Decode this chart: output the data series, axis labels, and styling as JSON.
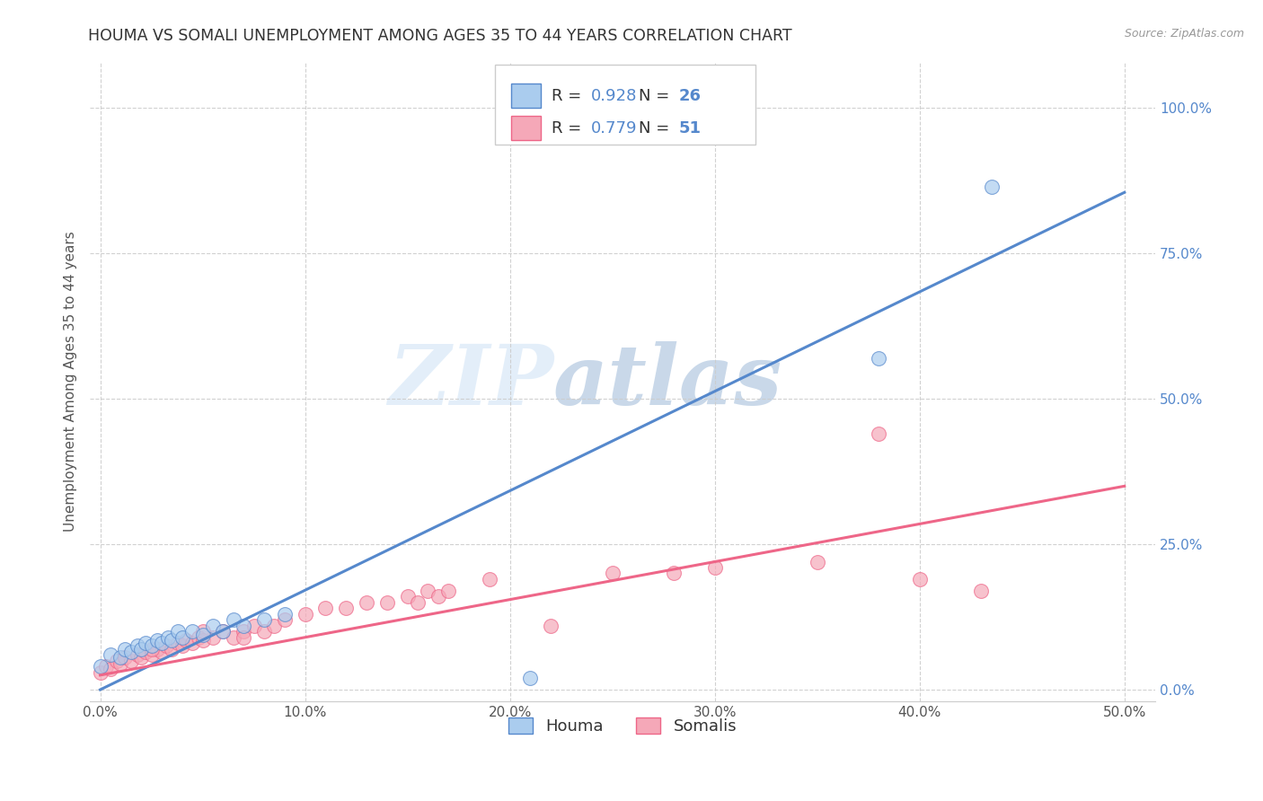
{
  "title": "HOUMA VS SOMALI UNEMPLOYMENT AMONG AGES 35 TO 44 YEARS CORRELATION CHART",
  "source": "Source: ZipAtlas.com",
  "xlabel_ticks": [
    "0.0%",
    "10.0%",
    "20.0%",
    "30.0%",
    "40.0%",
    "50.0%"
  ],
  "ylabel_ticks": [
    "0.0%",
    "25.0%",
    "50.0%",
    "75.0%",
    "100.0%"
  ],
  "xlabel_vals": [
    0.0,
    0.1,
    0.2,
    0.3,
    0.4,
    0.5
  ],
  "ylabel_vals": [
    0.0,
    0.25,
    0.5,
    0.75,
    1.0
  ],
  "xlim": [
    -0.005,
    0.515
  ],
  "ylim": [
    -0.02,
    1.08
  ],
  "ylabel": "Unemployment Among Ages 35 to 44 years",
  "watermark_zip": "ZIP",
  "watermark_atlas": "atlas",
  "houma_R": 0.928,
  "houma_N": 26,
  "somali_R": 0.779,
  "somali_N": 51,
  "houma_color": "#aaccee",
  "somali_color": "#f5a8b8",
  "houma_line_color": "#5588cc",
  "somali_line_color": "#ee6688",
  "houma_edge_color": "#5588cc",
  "somali_edge_color": "#ee6688",
  "houma_line_x0": 0.0,
  "houma_line_y0": 0.0,
  "houma_line_x1": 0.5,
  "houma_line_y1": 0.855,
  "somali_line_x0": 0.0,
  "somali_line_y0": 0.025,
  "somali_line_x1": 0.5,
  "somali_line_y1": 0.35,
  "houma_x": [
    0.0,
    0.005,
    0.01,
    0.012,
    0.015,
    0.018,
    0.02,
    0.022,
    0.025,
    0.028,
    0.03,
    0.033,
    0.035,
    0.038,
    0.04,
    0.045,
    0.05,
    0.055,
    0.06,
    0.065,
    0.07,
    0.08,
    0.09,
    0.21,
    0.38,
    0.435
  ],
  "houma_y": [
    0.04,
    0.06,
    0.055,
    0.07,
    0.065,
    0.075,
    0.07,
    0.08,
    0.075,
    0.085,
    0.08,
    0.09,
    0.085,
    0.1,
    0.09,
    0.1,
    0.095,
    0.11,
    0.1,
    0.12,
    0.11,
    0.12,
    0.13,
    0.02,
    0.57,
    0.865
  ],
  "somali_x": [
    0.0,
    0.003,
    0.005,
    0.008,
    0.01,
    0.012,
    0.015,
    0.018,
    0.02,
    0.022,
    0.025,
    0.028,
    0.03,
    0.032,
    0.035,
    0.038,
    0.04,
    0.042,
    0.045,
    0.048,
    0.05,
    0.055,
    0.06,
    0.065,
    0.07,
    0.075,
    0.08,
    0.085,
    0.09,
    0.1,
    0.11,
    0.12,
    0.13,
    0.14,
    0.15,
    0.155,
    0.16,
    0.165,
    0.17,
    0.19,
    0.22,
    0.25,
    0.28,
    0.3,
    0.35,
    0.38,
    0.4,
    0.43,
    0.025,
    0.05,
    0.07
  ],
  "somali_y": [
    0.03,
    0.04,
    0.035,
    0.05,
    0.045,
    0.055,
    0.05,
    0.06,
    0.055,
    0.065,
    0.06,
    0.07,
    0.065,
    0.075,
    0.07,
    0.08,
    0.075,
    0.085,
    0.08,
    0.09,
    0.085,
    0.09,
    0.1,
    0.09,
    0.1,
    0.11,
    0.1,
    0.11,
    0.12,
    0.13,
    0.14,
    0.14,
    0.15,
    0.15,
    0.16,
    0.15,
    0.17,
    0.16,
    0.17,
    0.19,
    0.11,
    0.2,
    0.2,
    0.21,
    0.22,
    0.44,
    0.19,
    0.17,
    0.07,
    0.1,
    0.09
  ],
  "background_color": "#ffffff",
  "grid_color": "#cccccc",
  "title_fontsize": 12.5,
  "axis_label_fontsize": 11,
  "tick_fontsize": 11,
  "legend_fontsize": 13
}
